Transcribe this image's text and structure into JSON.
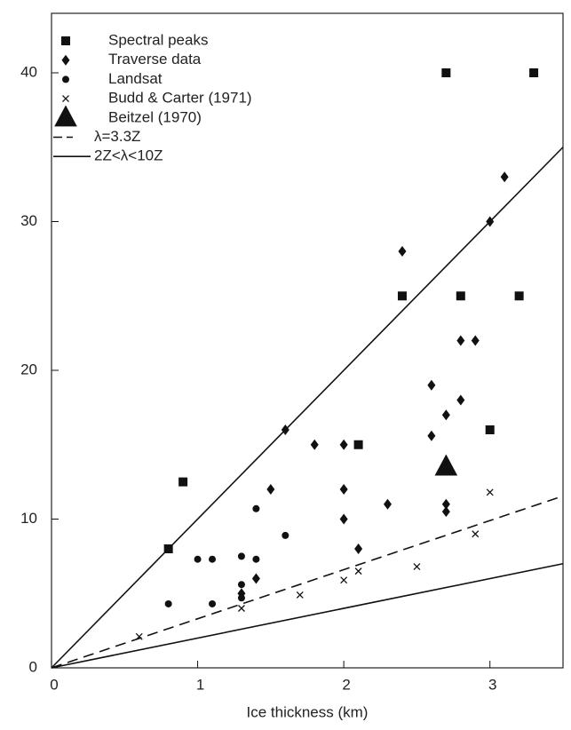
{
  "chart_data": {
    "type": "scatter",
    "xlabel": "Ice thickness (km)",
    "xlim": [
      0,
      3.5
    ],
    "ylim": [
      0,
      44
    ],
    "xticks": [
      0,
      1,
      2,
      3
    ],
    "yticks": [
      0,
      10,
      20,
      30,
      40
    ],
    "color": "#111111",
    "series": [
      {
        "name": "Spectral peaks",
        "marker": "square",
        "x": [
          0.8,
          0.9,
          2.1,
          2.4,
          2.7,
          2.8,
          3.0,
          3.2,
          3.3
        ],
        "values": [
          8,
          12.5,
          15,
          25,
          40,
          25,
          16,
          25,
          40
        ]
      },
      {
        "name": "Traverse data",
        "marker": "diamond",
        "x": [
          1.3,
          1.4,
          1.5,
          1.6,
          1.8,
          2.0,
          2.0,
          2.0,
          2.1,
          2.3,
          2.4,
          2.6,
          2.6,
          2.7,
          2.7,
          2.7,
          2.8,
          2.8,
          2.9,
          3.0,
          3.1
        ],
        "values": [
          5.0,
          6.0,
          12,
          16,
          15,
          15,
          12,
          10,
          8,
          11,
          28,
          19,
          15.6,
          17,
          11,
          10.5,
          18,
          22,
          22,
          30,
          33
        ]
      },
      {
        "name": "Landsat",
        "marker": "circle",
        "x": [
          0.8,
          1.0,
          1.1,
          1.1,
          1.3,
          1.3,
          1.3,
          1.4,
          1.4,
          1.6
        ],
        "values": [
          4.3,
          7.3,
          7.3,
          4.3,
          7.5,
          5.6,
          4.7,
          7.3,
          10.7,
          8.9
        ]
      },
      {
        "name": "Budd & Carter (1971)",
        "marker": "x",
        "x": [
          0.6,
          1.3,
          1.7,
          2.0,
          2.1,
          2.5,
          2.9,
          3.0
        ],
        "values": [
          2.1,
          4.0,
          4.9,
          5.9,
          6.5,
          6.8,
          9.0,
          11.8
        ]
      },
      {
        "name": "Beitzel (1970)",
        "marker": "triangle",
        "x": [
          2.7
        ],
        "values": [
          13.5
        ]
      },
      {
        "name": "λ=3.3Z",
        "marker": "dash",
        "x": [
          0,
          3.5
        ],
        "values": [
          0,
          11.55
        ]
      },
      {
        "name": "2Z<λ<10Z",
        "marker": "solid",
        "x": [
          0,
          3.5,
          null,
          0,
          3.5
        ],
        "values": [
          0,
          35,
          null,
          0,
          7
        ]
      }
    ]
  }
}
